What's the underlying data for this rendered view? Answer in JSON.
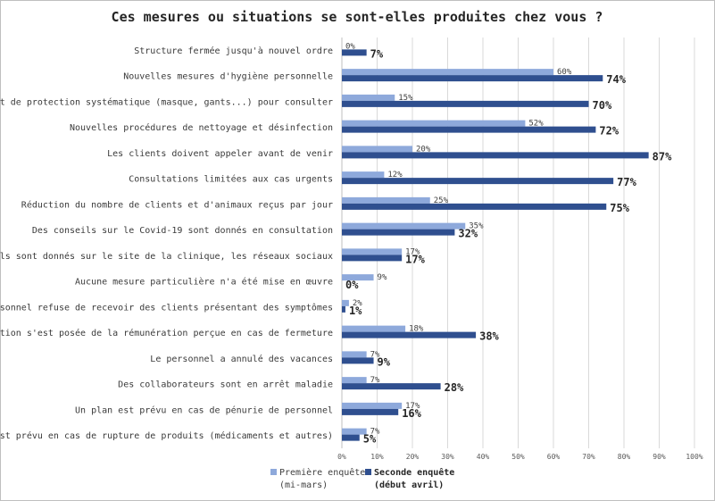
{
  "chart_data": {
    "type": "bar",
    "orientation": "horizontal",
    "title": "Ces mesures ou situations se sont-elles produites chez vous ?",
    "categories": [
      "Structure fermée jusqu'à nouvel ordre",
      "Nouvelles mesures d'hygiène personnelle",
      "Équipement de protection systématique (masque, gants...) pour consulter",
      "Nouvelles procédures de nettoyage et désinfection",
      "Les clients doivent appeler avant de venir",
      "Consultations limitées aux cas urgents",
      "Réduction du nombre de clients et d'animaux reçus par jour",
      "Des conseils sur le Covid-19 sont donnés en consultation",
      "Des conseils sont donnés sur le site de la clinique, les réseaux sociaux",
      "Aucune mesure particulière n'a été mise en œuvre",
      "Le personnel refuse de recevoir des clients présentant des symptômes",
      "La question s'est posée de la rémunération perçue en cas de fermeture",
      "Le personnel a annulé des vacances",
      "Des collaborateurs sont en arrêt maladie",
      "Un plan est prévu en cas de pénurie de personnel",
      "Un plan est prévu en cas de rupture de produits (médicaments et autres)"
    ],
    "series": [
      {
        "name": "Première enquête (mi-mars)",
        "color": "#8ea9db",
        "values": [
          0,
          60,
          15,
          52,
          20,
          12,
          25,
          35,
          17,
          9,
          2,
          18,
          7,
          7,
          17,
          7
        ],
        "labels": [
          "0%",
          "60%",
          "15%",
          "52%",
          "20%",
          "12%",
          "25%",
          "35%",
          "17%",
          "9%",
          "2%",
          "18%",
          "7%",
          "7%",
          "17%",
          "7%"
        ]
      },
      {
        "name": "Seconde enquête (début avril)",
        "color": "#2f4f8f",
        "values": [
          7,
          74,
          70,
          72,
          87,
          77,
          75,
          32,
          17,
          0,
          1,
          38,
          9,
          28,
          16,
          5
        ],
        "labels": [
          "7%",
          "74%",
          "70%",
          "72%",
          "87%",
          "77%",
          "75%",
          "32%",
          "17%",
          "0%",
          "1%",
          "38%",
          "9%",
          "28%",
          "16%",
          "5%"
        ]
      }
    ],
    "xlim": [
      0,
      100
    ],
    "xticks": [
      "0%",
      "10%",
      "20%",
      "30%",
      "40%",
      "50%",
      "60%",
      "70%",
      "80%",
      "90%",
      "100%"
    ],
    "grid": true,
    "legend": {
      "position": "bottom-left",
      "entries": [
        {
          "line1": "Première enquête",
          "line2": "(mi-mars)"
        },
        {
          "line1": "Seconde enquête",
          "line2": "(début avril)"
        }
      ]
    }
  }
}
